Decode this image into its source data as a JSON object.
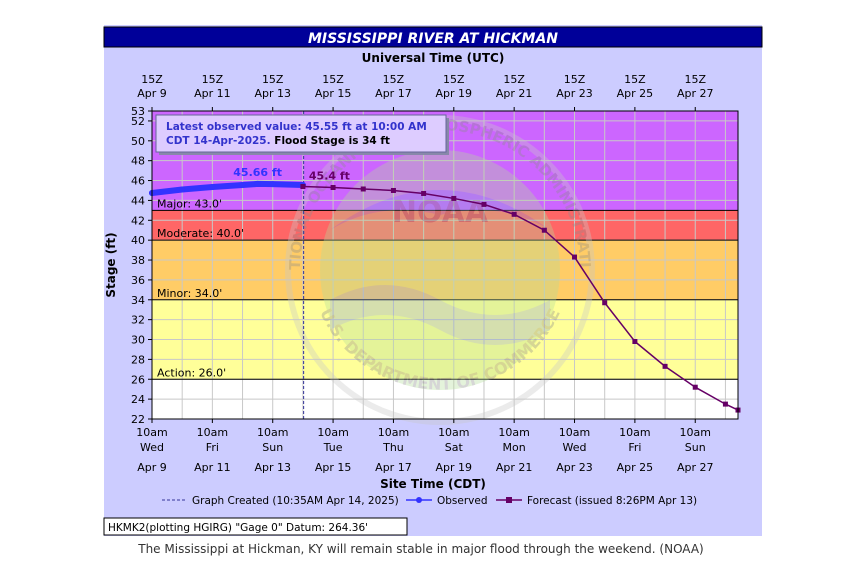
{
  "chart_data": {
    "type": "line",
    "title": "MISSISSIPPI RIVER AT HICKMAN",
    "top_axis_title": "Universal Time (UTC)",
    "xlabel": "Site Time (CDT)",
    "ylabel": "Stage (ft)",
    "ylim": [
      22,
      53
    ],
    "yticks": [
      22,
      24,
      26,
      28,
      30,
      32,
      34,
      36,
      38,
      40,
      42,
      44,
      46,
      48,
      50,
      52,
      53
    ],
    "x_range": [
      "2025-04-09 10:00",
      "2025-04-28 20:00"
    ],
    "grid": true,
    "top_ticks": [
      {
        "t": "2025-04-09 10:00",
        "line1": "15Z",
        "line2": "Apr  9"
      },
      {
        "t": "2025-04-11 10:00",
        "line1": "15Z",
        "line2": "Apr 11"
      },
      {
        "t": "2025-04-13 10:00",
        "line1": "15Z",
        "line2": "Apr 13"
      },
      {
        "t": "2025-04-15 10:00",
        "line1": "15Z",
        "line2": "Apr 15"
      },
      {
        "t": "2025-04-17 10:00",
        "line1": "15Z",
        "line2": "Apr 17"
      },
      {
        "t": "2025-04-19 10:00",
        "line1": "15Z",
        "line2": "Apr 19"
      },
      {
        "t": "2025-04-21 10:00",
        "line1": "15Z",
        "line2": "Apr 21"
      },
      {
        "t": "2025-04-23 10:00",
        "line1": "15Z",
        "line2": "Apr 23"
      },
      {
        "t": "2025-04-25 10:00",
        "line1": "15Z",
        "line2": "Apr 25"
      },
      {
        "t": "2025-04-27 10:00",
        "line1": "15Z",
        "line2": "Apr 27"
      }
    ],
    "bottom_ticks": [
      {
        "t": "2025-04-09 10:00",
        "time": "10am",
        "day": "Wed",
        "date": "Apr 9"
      },
      {
        "t": "2025-04-11 10:00",
        "time": "10am",
        "day": "Fri",
        "date": "Apr 11"
      },
      {
        "t": "2025-04-13 10:00",
        "time": "10am",
        "day": "Sun",
        "date": "Apr 13"
      },
      {
        "t": "2025-04-15 10:00",
        "time": "10am",
        "day": "Tue",
        "date": "Apr 15"
      },
      {
        "t": "2025-04-17 10:00",
        "time": "10am",
        "day": "Thu",
        "date": "Apr 17"
      },
      {
        "t": "2025-04-19 10:00",
        "time": "10am",
        "day": "Sat",
        "date": "Apr 19"
      },
      {
        "t": "2025-04-21 10:00",
        "time": "10am",
        "day": "Mon",
        "date": "Apr 21"
      },
      {
        "t": "2025-04-23 10:00",
        "time": "10am",
        "day": "Wed",
        "date": "Apr 23"
      },
      {
        "t": "2025-04-25 10:00",
        "time": "10am",
        "day": "Fri",
        "date": "Apr 25"
      },
      {
        "t": "2025-04-27 10:00",
        "time": "10am",
        "day": "Sun",
        "date": "Apr 27"
      }
    ],
    "flood_categories": [
      {
        "name": "Action",
        "label": "Action: 26.0'",
        "stage": 26.0,
        "color": "#ffff99"
      },
      {
        "name": "Minor",
        "label": "Minor: 34.0'",
        "stage": 34.0,
        "color": "#ffcc66"
      },
      {
        "name": "Moderate",
        "label": "Moderate: 40.0'",
        "stage": 40.0,
        "color": "#ff6666"
      },
      {
        "name": "Major",
        "label": "Major: 43.0'",
        "stage": 43.0,
        "color": "#cc66ff"
      }
    ],
    "below_action_color": "#ffffff",
    "graph_created": "2025-04-14 10:35",
    "series": [
      {
        "name": "Observed",
        "color": "#3333ff",
        "peak_label": "45.66 ft",
        "points": [
          {
            "t": "2025-04-09 10:00",
            "v": 44.75
          },
          {
            "t": "2025-04-10 10:00",
            "v": 45.1
          },
          {
            "t": "2025-04-11 10:00",
            "v": 45.35
          },
          {
            "t": "2025-04-12 10:00",
            "v": 45.55
          },
          {
            "t": "2025-04-12 22:00",
            "v": 45.66
          },
          {
            "t": "2025-04-13 10:00",
            "v": 45.64
          },
          {
            "t": "2025-04-14 10:00",
            "v": 45.55
          }
        ]
      },
      {
        "name": "Forecast",
        "color": "#660066",
        "start_label": "45.4 ft",
        "points": [
          {
            "t": "2025-04-14 10:00",
            "v": 45.4
          },
          {
            "t": "2025-04-15 10:00",
            "v": 45.3
          },
          {
            "t": "2025-04-16 10:00",
            "v": 45.15
          },
          {
            "t": "2025-04-17 10:00",
            "v": 45.0
          },
          {
            "t": "2025-04-18 10:00",
            "v": 44.7
          },
          {
            "t": "2025-04-19 10:00",
            "v": 44.2
          },
          {
            "t": "2025-04-20 10:00",
            "v": 43.6
          },
          {
            "t": "2025-04-21 10:00",
            "v": 42.6
          },
          {
            "t": "2025-04-22 10:00",
            "v": 41.0
          },
          {
            "t": "2025-04-23 10:00",
            "v": 38.3
          },
          {
            "t": "2025-04-24 10:00",
            "v": 33.7
          },
          {
            "t": "2025-04-25 10:00",
            "v": 29.8
          },
          {
            "t": "2025-04-26 10:00",
            "v": 27.3
          },
          {
            "t": "2025-04-27 10:00",
            "v": 25.2
          },
          {
            "t": "2025-04-28 10:00",
            "v": 23.5
          },
          {
            "t": "2025-04-28 20:00",
            "v": 22.9
          }
        ]
      }
    ],
    "annotation": {
      "line1": "Latest observed value: 45.55 ft at 10:00 AM",
      "line2": "CDT 14-Apr-2025.",
      "line2_bold": " Flood Stage is 34 ft"
    },
    "legend": {
      "position": "bottom",
      "created": "Graph Created (10:35AM Apr 14, 2025)",
      "observed": "Observed",
      "forecast": "Forecast (issued 8:26PM Apr 13)"
    },
    "footer": "HKMK2(plotting HGIRG) \"Gage 0\" Datum: 264.36'",
    "watermark": {
      "arc_top": "NATIONAL OCEANIC AND ATMOSPHERIC ADMINISTRATION",
      "arc_bottom": "U.S. DEPARTMENT OF COMMERCE",
      "center": "NOAA"
    }
  },
  "caption": "The Mississippi at Hickman, KY will remain stable in major flood through the weekend. (NOAA)",
  "colors": {
    "title_bg": "#000099",
    "title_text": "#ffffff",
    "frame_bg": "#ccccff",
    "observed": "#3333ff",
    "forecast": "#660066",
    "created_line": "#333399",
    "grid": "#c8c8c8"
  }
}
